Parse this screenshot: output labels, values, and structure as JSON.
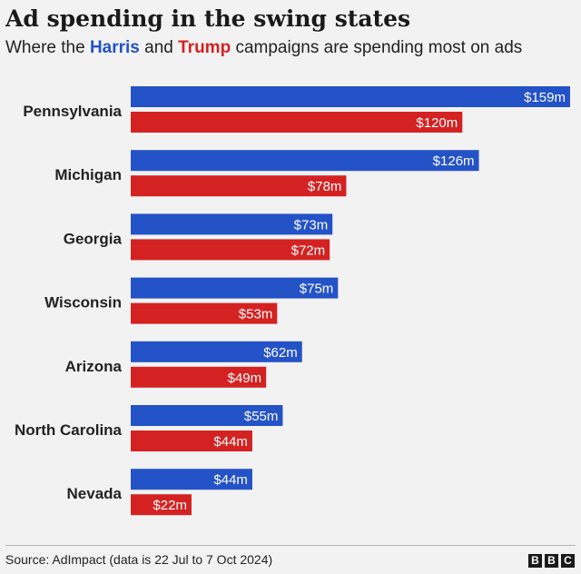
{
  "title": "Ad spending in the swing states",
  "subtitle": {
    "prefix": "Where the ",
    "harris": "Harris",
    "and": " and ",
    "trump": "Trump",
    "suffix": " campaigns are spending most on ads"
  },
  "colors": {
    "harris": "#2452c7",
    "trump": "#d42222"
  },
  "chart_data": {
    "type": "bar",
    "orientation": "horizontal",
    "title": "Ad spending in the swing states",
    "xlabel": "",
    "ylabel": "",
    "xlim": [
      0,
      159
    ],
    "grid": false,
    "categories": [
      "Pennsylvania",
      "Michigan",
      "Georgia",
      "Wisconsin",
      "Arizona",
      "North Carolina",
      "Nevada"
    ],
    "series": [
      {
        "name": "Harris",
        "values": [
          159,
          126,
          73,
          75,
          62,
          55,
          44
        ],
        "labels": [
          "$159m",
          "$126m",
          "$73m",
          "$75m",
          "$62m",
          "$55m",
          "$44m"
        ]
      },
      {
        "name": "Trump",
        "values": [
          120,
          78,
          72,
          53,
          49,
          44,
          22
        ],
        "labels": [
          "$120m",
          "$78m",
          "$72m",
          "$53m",
          "$49m",
          "$44m",
          "$22m"
        ]
      }
    ]
  },
  "footer": {
    "source": "Source: AdImpact (data is 22 Jul to 7 Oct 2024)",
    "logo_letters": [
      "B",
      "B",
      "C"
    ]
  }
}
